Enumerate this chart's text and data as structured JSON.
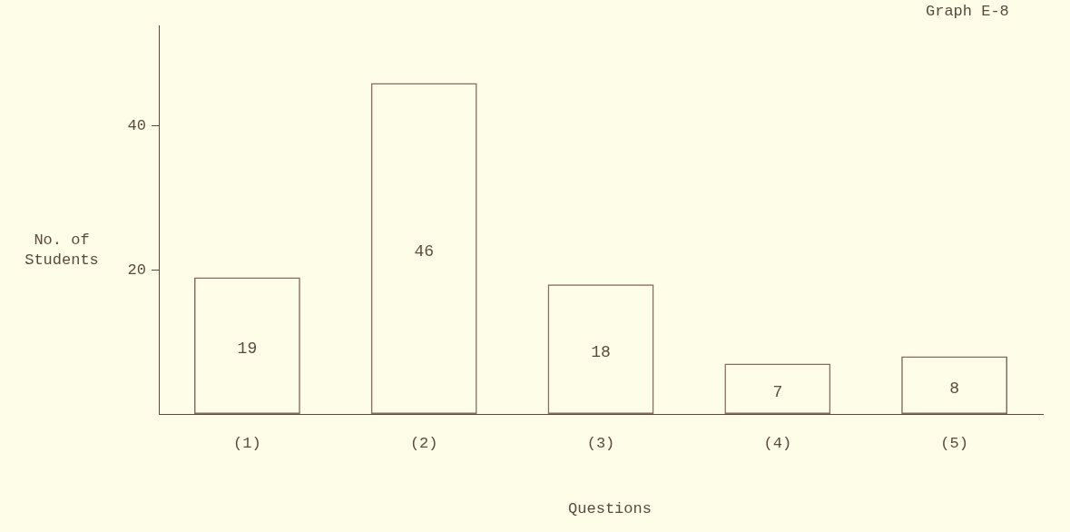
{
  "chart_data": {
    "type": "bar",
    "title": "Graph E-8",
    "xlabel": "Questions",
    "ylabel": "No. of Students",
    "categories": [
      "(1)",
      "(2)",
      "(3)",
      "(4)",
      "(5)"
    ],
    "values": [
      19,
      46,
      18,
      7,
      8
    ],
    "color": "#8a6a5a",
    "ylim": [
      0,
      54
    ],
    "yticks": [
      20,
      40
    ],
    "data_labels": true
  }
}
